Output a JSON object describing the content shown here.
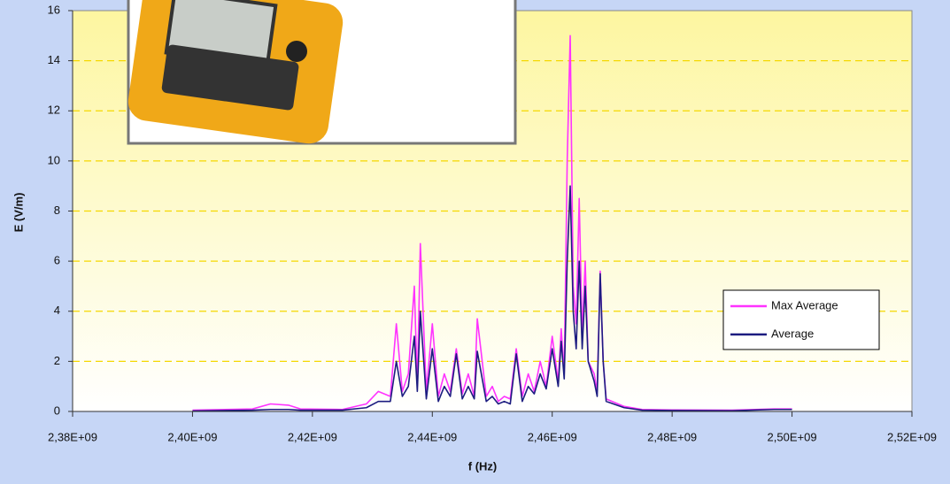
{
  "chart_data": {
    "type": "line",
    "x_label": "f (Hz)",
    "y_label": "E (V/m)",
    "x": [
      2400000000,
      2410000000,
      2413000000,
      2416000000,
      2418000000,
      2425000000,
      2429000000,
      2431000000,
      2433000000,
      2434000000,
      2435000000,
      2436000000,
      2437000000,
      2437500000,
      2438000000,
      2439000000,
      2440000000,
      2441000000,
      2442000000,
      2443000000,
      2444000000,
      2445000000,
      2446000000,
      2447000000,
      2447500000,
      2449000000,
      2450000000,
      2451000000,
      2452000000,
      2453000000,
      2454000000,
      2455000000,
      2456000000,
      2457000000,
      2458000000,
      2459000000,
      2460000000,
      2461000000,
      2461500000,
      2462000000,
      2462500000,
      2463000000,
      2463500000,
      2464000000,
      2464500000,
      2465000000,
      2465500000,
      2466000000,
      2467000000,
      2467500000,
      2468000000,
      2468500000,
      2469000000,
      2472000000,
      2475000000,
      2480000000,
      2490000000,
      2497000000,
      2500000000
    ],
    "series": [
      {
        "name": "Max Average",
        "color": "#ff33ff",
        "values": [
          0.05,
          0.1,
          0.3,
          0.25,
          0.1,
          0.08,
          0.3,
          0.8,
          0.6,
          3.5,
          0.8,
          1.5,
          5.0,
          1.0,
          6.7,
          0.8,
          3.5,
          0.6,
          1.5,
          0.8,
          2.5,
          0.7,
          1.5,
          0.6,
          3.7,
          0.6,
          1.0,
          0.4,
          0.6,
          0.5,
          2.5,
          0.6,
          1.5,
          0.8,
          2.0,
          1.0,
          3.0,
          1.2,
          3.3,
          1.5,
          10.0,
          15.0,
          5.0,
          3.5,
          8.5,
          3.0,
          6.0,
          2.0,
          1.5,
          0.8,
          5.6,
          2.0,
          0.5,
          0.2,
          0.08,
          0.06,
          0.05,
          0.1,
          0.1
        ]
      },
      {
        "name": "Average",
        "color": "#1c1c80",
        "values": [
          0.02,
          0.05,
          0.08,
          0.08,
          0.05,
          0.05,
          0.15,
          0.4,
          0.4,
          2.0,
          0.6,
          1.0,
          3.0,
          0.8,
          4.0,
          0.5,
          2.5,
          0.4,
          1.0,
          0.6,
          2.3,
          0.5,
          1.0,
          0.5,
          2.4,
          0.4,
          0.6,
          0.3,
          0.4,
          0.3,
          2.3,
          0.4,
          1.0,
          0.7,
          1.5,
          0.9,
          2.5,
          1.0,
          2.8,
          1.3,
          6.0,
          9.0,
          4.0,
          2.5,
          6.0,
          2.5,
          5.0,
          2.0,
          1.2,
          0.6,
          5.5,
          2.0,
          0.4,
          0.15,
          0.05,
          0.04,
          0.03,
          0.08,
          0.08
        ]
      }
    ],
    "xlim": [
      2380000000,
      2520000000
    ],
    "xticks": [
      {
        "value": 2380000000,
        "label": "2,38E+09"
      },
      {
        "value": 2400000000,
        "label": "2,40E+09"
      },
      {
        "value": 2420000000,
        "label": "2,42E+09"
      },
      {
        "value": 2440000000,
        "label": "2,44E+09"
      },
      {
        "value": 2460000000,
        "label": "2,46E+09"
      },
      {
        "value": 2480000000,
        "label": "2,48E+09"
      },
      {
        "value": 2500000000,
        "label": "2,50E+09"
      },
      {
        "value": 2520000000,
        "label": "2,52E+09"
      }
    ],
    "ylim": [
      0,
      16
    ],
    "yticks": [
      0,
      2,
      4,
      6,
      8,
      10,
      12,
      14,
      16
    ],
    "grid": true,
    "legend": "right"
  }
}
